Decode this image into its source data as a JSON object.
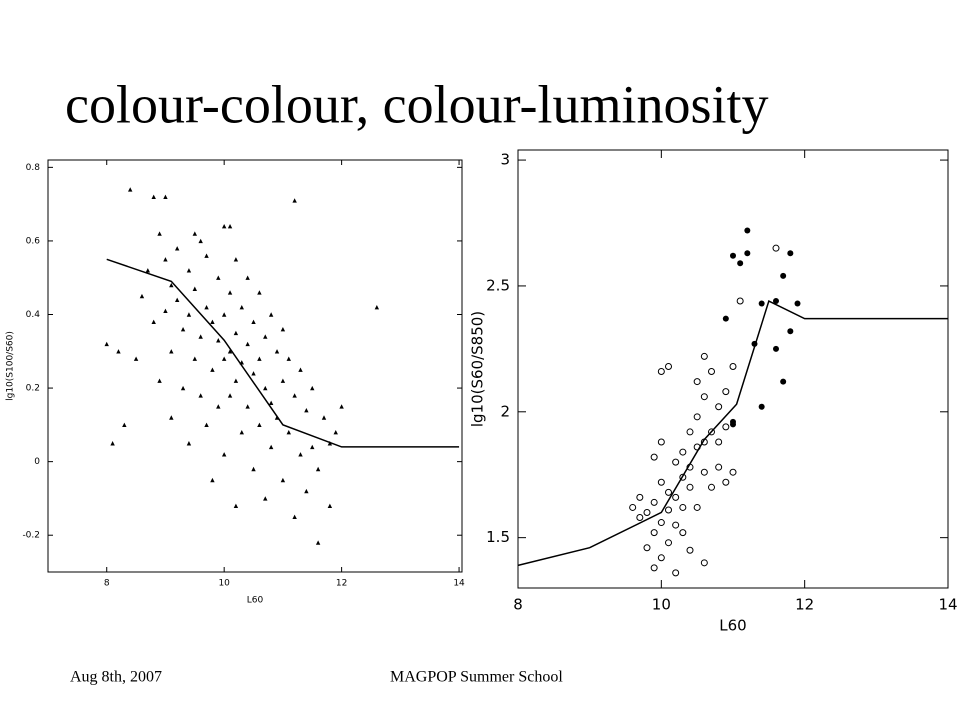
{
  "header": {
    "title": "colour-colour, colour-luminosity"
  },
  "footer": {
    "date": "Aug 8th, 2007",
    "event": "MAGPOP Summer School"
  },
  "chart_data": [
    {
      "type": "scatter",
      "xlabel": "L60",
      "ylabel": "lg10(S100/S60)",
      "xlim": [
        7,
        14.05
      ],
      "ylim": [
        -0.3,
        0.82
      ],
      "xticks": [
        8,
        10,
        12,
        14
      ],
      "yticks": [
        -0.2,
        0,
        0.2,
        0.4,
        0.6,
        0.8
      ],
      "series": [
        {
          "style": "triangle",
          "color": "#000000",
          "x": [
            8.0,
            8.1,
            8.2,
            8.4,
            8.5,
            8.6,
            8.7,
            8.8,
            8.8,
            8.9,
            8.9,
            9.0,
            9.0,
            9.1,
            9.1,
            9.1,
            9.2,
            9.2,
            9.3,
            9.3,
            9.4,
            9.4,
            9.4,
            9.5,
            9.5,
            9.5,
            9.6,
            9.6,
            9.7,
            9.7,
            9.7,
            9.8,
            9.8,
            9.8,
            9.9,
            9.9,
            9.9,
            10.0,
            10.0,
            10.0,
            10.0,
            10.1,
            10.1,
            10.1,
            10.2,
            10.2,
            10.2,
            10.2,
            10.3,
            10.3,
            10.3,
            10.4,
            10.4,
            10.4,
            10.5,
            10.5,
            10.5,
            10.6,
            10.6,
            10.6,
            10.7,
            10.7,
            10.7,
            10.8,
            10.8,
            10.8,
            10.9,
            10.9,
            11.0,
            11.0,
            11.0,
            11.1,
            11.1,
            11.2,
            11.2,
            11.3,
            11.3,
            11.4,
            11.4,
            11.5,
            11.5,
            11.6,
            11.6,
            11.7,
            11.8,
            11.8,
            11.9,
            12.0,
            11.2,
            12.6,
            9.6,
            10.1,
            9.0,
            8.3
          ],
          "values": [
            0.32,
            0.05,
            0.3,
            0.74,
            0.28,
            0.45,
            0.52,
            0.72,
            0.38,
            0.62,
            0.22,
            0.55,
            0.41,
            0.48,
            0.3,
            0.12,
            0.58,
            0.44,
            0.36,
            0.2,
            0.52,
            0.4,
            0.05,
            0.62,
            0.47,
            0.28,
            0.34,
            0.18,
            0.56,
            0.42,
            0.1,
            0.38,
            0.25,
            -0.05,
            0.5,
            0.33,
            0.15,
            0.64,
            0.4,
            0.28,
            0.02,
            0.46,
            0.3,
            0.18,
            0.55,
            0.35,
            0.22,
            -0.12,
            0.42,
            0.27,
            0.08,
            0.5,
            0.32,
            0.15,
            0.38,
            0.24,
            -0.02,
            0.46,
            0.28,
            0.1,
            0.34,
            0.2,
            -0.1,
            0.4,
            0.16,
            0.04,
            0.3,
            0.12,
            0.36,
            0.22,
            -0.05,
            0.28,
            0.08,
            0.18,
            -0.15,
            0.25,
            0.02,
            0.14,
            -0.08,
            0.2,
            0.04,
            -0.02,
            -0.22,
            0.12,
            0.05,
            -0.12,
            0.08,
            0.15,
            0.71,
            0.42,
            0.6,
            0.64,
            0.72,
            0.1
          ]
        },
        {
          "style": "line",
          "color": "#000000",
          "x": [
            8,
            9.1,
            10,
            11,
            12,
            14
          ],
          "values": [
            0.55,
            0.49,
            0.33,
            0.1,
            0.04,
            0.04
          ]
        }
      ]
    },
    {
      "type": "scatter",
      "xlabel": "L60",
      "ylabel": "lg10(S60/S850)",
      "xlim": [
        8,
        14
      ],
      "ylim": [
        1.3,
        3.04
      ],
      "xticks": [
        8,
        10,
        12,
        14
      ],
      "yticks": [
        1.5,
        2,
        2.5,
        3
      ],
      "series": [
        {
          "style": "circle-open",
          "color": "#000000",
          "x": [
            9.6,
            9.7,
            9.7,
            9.8,
            9.8,
            9.9,
            9.9,
            9.9,
            10.0,
            10.0,
            10.0,
            10.0,
            10.1,
            10.1,
            10.1,
            10.2,
            10.2,
            10.2,
            10.3,
            10.3,
            10.3,
            10.3,
            10.4,
            10.4,
            10.4,
            10.5,
            10.5,
            10.5,
            10.5,
            10.6,
            10.6,
            10.6,
            10.6,
            10.7,
            10.7,
            10.7,
            10.8,
            10.8,
            10.8,
            10.9,
            10.9,
            10.9,
            11.0,
            11.0,
            10.1,
            10.0,
            11.1,
            10.4,
            9.9,
            10.2,
            11.6,
            10.6
          ],
          "values": [
            1.62,
            1.66,
            1.58,
            1.6,
            1.46,
            1.52,
            1.38,
            1.64,
            1.72,
            1.42,
            1.88,
            1.56,
            1.68,
            1.61,
            1.48,
            1.8,
            1.55,
            1.66,
            1.74,
            1.52,
            1.84,
            1.62,
            1.7,
            1.78,
            1.45,
            1.86,
            1.98,
            1.62,
            2.12,
            1.88,
            1.76,
            2.06,
            2.22,
            1.92,
            1.7,
            2.16,
            1.88,
            2.02,
            1.78,
            1.94,
            2.08,
            1.72,
            1.76,
            2.18,
            2.18,
            2.16,
            2.44,
            1.92,
            1.82,
            1.36,
            2.65,
            1.4
          ]
        },
        {
          "style": "circle",
          "color": "#000000",
          "x": [
            11.2,
            11.2,
            11.0,
            11.1,
            11.7,
            11.8,
            11.4,
            11.6,
            11.9,
            10.9,
            11.3,
            11.6,
            11.8,
            11.7,
            11.4,
            11.0,
            11.0
          ],
          "values": [
            2.72,
            2.63,
            2.62,
            2.59,
            2.54,
            2.63,
            2.43,
            2.44,
            2.43,
            2.37,
            2.27,
            2.25,
            2.32,
            2.12,
            2.02,
            1.95,
            1.96
          ]
        },
        {
          "style": "line",
          "color": "#000000",
          "x": [
            8,
            9,
            10,
            10.6,
            11.05,
            11.5,
            12,
            14
          ],
          "values": [
            1.39,
            1.46,
            1.6,
            1.89,
            2.03,
            2.44,
            2.37,
            2.37
          ]
        }
      ]
    }
  ]
}
